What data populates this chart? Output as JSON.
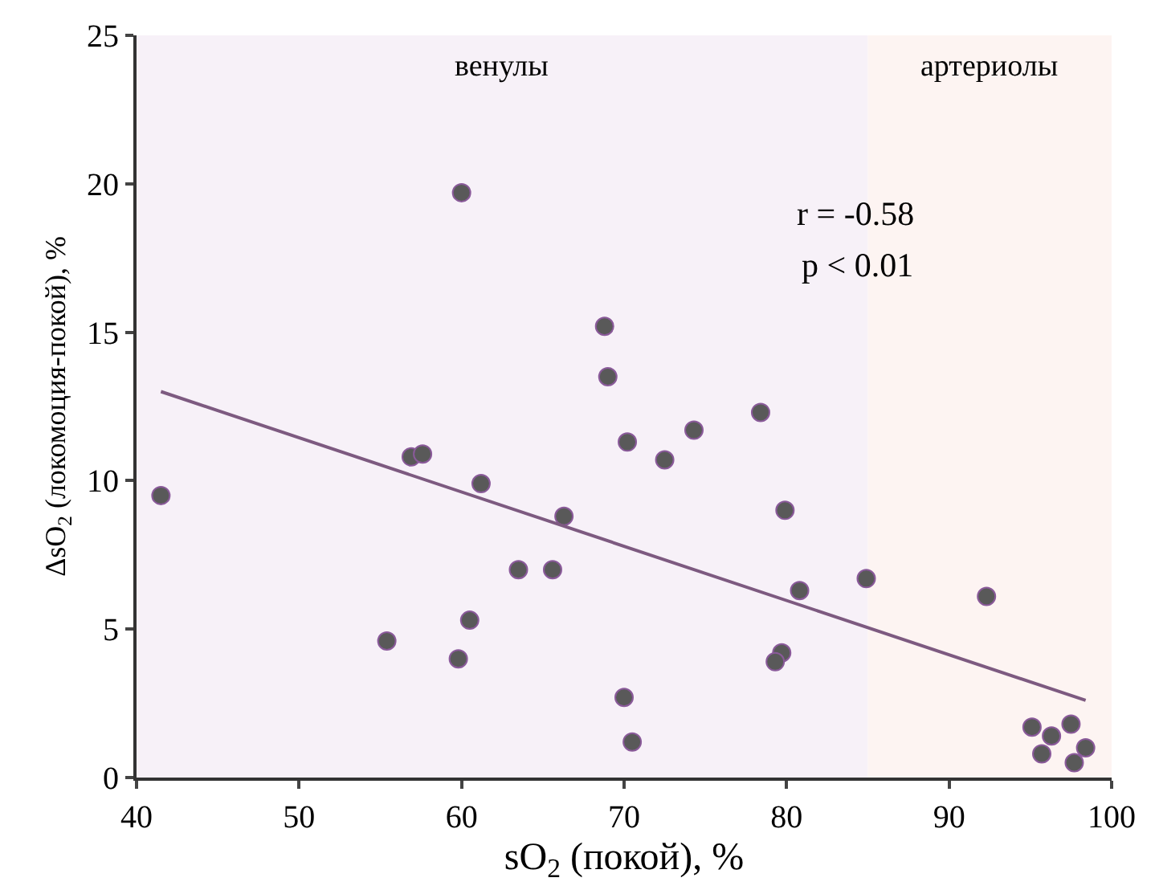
{
  "chart_data": {
    "type": "scatter",
    "xlabel": "sO$_{2}$ (покой), %",
    "ylabel": "ΔsO$_{2}$ (локомоция-покой), %",
    "xlim": [
      40,
      100
    ],
    "xticks": [
      40,
      50,
      60,
      70,
      80,
      90,
      100
    ],
    "ylim": [
      0,
      25
    ],
    "yticks": [
      0,
      5,
      10,
      15,
      20,
      25
    ],
    "grid": false,
    "legend": false,
    "series": [
      {
        "marker": "circle",
        "color": "#595959",
        "x": [
          41.5,
          60.0,
          68.8,
          69.0,
          70.2,
          56.9,
          57.6,
          61.2,
          66.3,
          63.5,
          65.6,
          55.4,
          59.8,
          60.5,
          70.0,
          70.5,
          72.5,
          74.3,
          78.4,
          79.9,
          80.8,
          84.9,
          79.7,
          79.3,
          92.3,
          95.1,
          96.3,
          97.5,
          95.7,
          98.4,
          97.7
        ],
        "values": [
          9.5,
          19.7,
          15.2,
          13.5,
          11.3,
          10.8,
          10.9,
          9.9,
          8.8,
          7.0,
          7.0,
          4.6,
          4.0,
          5.3,
          2.7,
          1.2,
          10.7,
          11.7,
          12.3,
          9.0,
          6.3,
          6.7,
          4.2,
          3.9,
          6.1,
          1.7,
          1.4,
          1.8,
          0.8,
          1.0,
          0.5
        ]
      },
      {
        "type": "line",
        "marker": "none",
        "color": "#7d5a80",
        "x": [
          41.5,
          98.4
        ],
        "values": [
          13.0,
          2.6
        ]
      }
    ],
    "bands": [
      {
        "axis": "x",
        "from": 40,
        "to": 85,
        "label": "венулы",
        "color": "#f7f1f8"
      },
      {
        "axis": "x",
        "from": 85,
        "to": 100,
        "label": "артериолы",
        "color": "#fdf4f2"
      }
    ],
    "annotations": [
      "r = -0.58",
      "p < 0.01"
    ]
  }
}
